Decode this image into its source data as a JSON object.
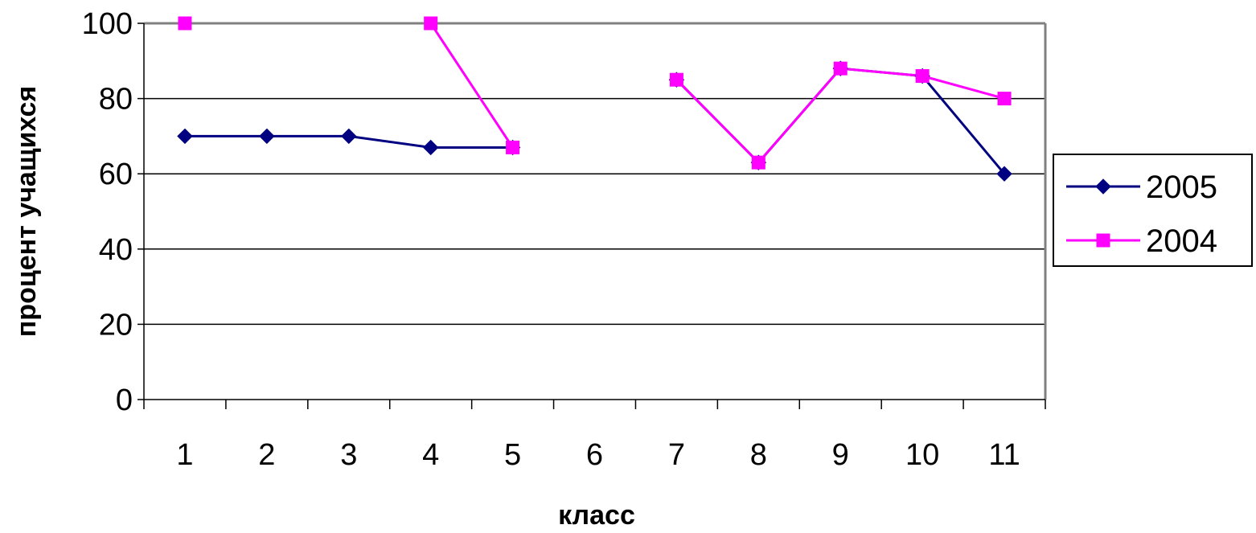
{
  "chart_data": {
    "type": "line",
    "title": "",
    "xlabel": "класс",
    "ylabel": "процент учащихся",
    "categories": [
      "1",
      "2",
      "3",
      "4",
      "5",
      "6",
      "7",
      "8",
      "9",
      "10",
      "11"
    ],
    "ylim": [
      0,
      100
    ],
    "yticks": [
      0,
      20,
      40,
      60,
      80,
      100
    ],
    "grid": true,
    "legend_position": "right",
    "series": [
      {
        "name": "2005",
        "color": "#000080",
        "marker": "diamond",
        "values": [
          70,
          70,
          70,
          67,
          67,
          null,
          85,
          63,
          88,
          86,
          60
        ]
      },
      {
        "name": "2004",
        "color": "#ff00ff",
        "marker": "square",
        "values": [
          100,
          null,
          null,
          100,
          67,
          null,
          85,
          63,
          88,
          86,
          80
        ]
      }
    ]
  }
}
